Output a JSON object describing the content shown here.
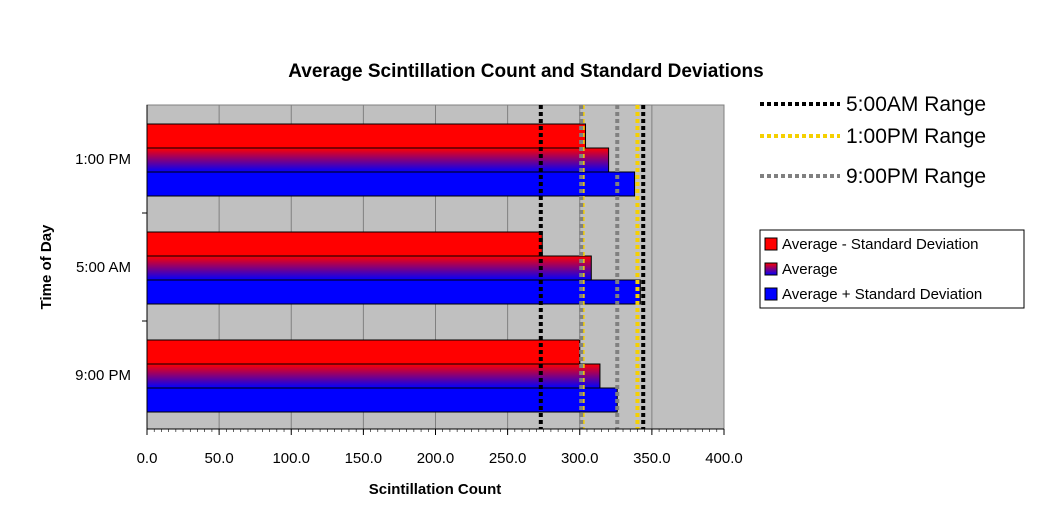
{
  "chart_data": {
    "type": "bar",
    "orientation": "horizontal",
    "title": "Average Scintillation Count and Standard Deviations",
    "xlabel": "Scintillation Count",
    "ylabel": "Time of Day",
    "xlim": [
      0,
      400
    ],
    "xticks": [
      "0.0",
      "50.0",
      "100.0",
      "150.0",
      "200.0",
      "250.0",
      "300.0",
      "350.0",
      "400.0"
    ],
    "categories": [
      "1:00 PM",
      "5:00 AM",
      "9:00 PM"
    ],
    "series": [
      {
        "name": "Average - Standard Deviation",
        "color": "#ff0000",
        "values": [
          304,
          274,
          300
        ]
      },
      {
        "name": "Average",
        "color": "#9933cc",
        "gradient": [
          "#ff0000",
          "#0000ff"
        ],
        "values": [
          320,
          308,
          314
        ]
      },
      {
        "name": "Average + Standard Deviation",
        "color": "#0000ff",
        "values": [
          338,
          342,
          326
        ]
      }
    ],
    "ranges": [
      {
        "name": "5:00AM Range",
        "color": "#000000",
        "low": 273,
        "high": 344
      },
      {
        "name": "1:00PM Range",
        "color": "#f5d000",
        "low": 302,
        "high": 340
      },
      {
        "name": "9:00PM Range",
        "color": "#808080",
        "low": 301,
        "high": 326
      }
    ],
    "grid": true,
    "plot_background": "#c0c0c0",
    "legend_position": "right"
  }
}
